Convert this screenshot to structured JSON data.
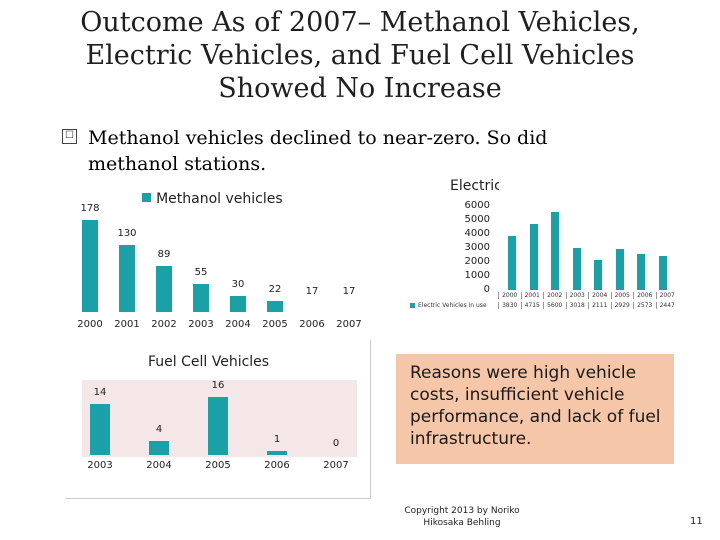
{
  "slide": {
    "title_lines": [
      "Outcome As of 2007– Methanol Vehicles,",
      "Electric Vehicles, and Fuel Cell Vehicles",
      "Showed No Increase"
    ],
    "bullet_marker": "☐",
    "bullet_line1": "Methanol vehicles declined to near-zero. So did",
    "bullet_line2": "methanol stations.",
    "reasons": "Reasons were high vehicle costs, insufficient vehicle performance, and lack of fuel infrastructure.",
    "copyright_line1": "Copyright 2013 by Noriko",
    "copyright_line2": "Hikosaka Behling",
    "page_number": "11",
    "accent": "#1aa1a8"
  },
  "chart_data": [
    {
      "type": "bar",
      "title": "Methanol vehicles",
      "legend_label": "Methanol vehicles",
      "categories": [
        "2000",
        "2001",
        "2002",
        "2003",
        "2004",
        "2005",
        "2006",
        "2007"
      ],
      "values": [
        178,
        130,
        89,
        55,
        30,
        22,
        17,
        17
      ],
      "labels": [
        "178",
        "130",
        "89",
        "55",
        "30",
        "22",
        "17",
        "17"
      ]
    },
    {
      "type": "bar",
      "title": "Electric \\",
      "categories": [
        "2000",
        "2001",
        "2002",
        "2003",
        "2004",
        "2005",
        "2006",
        "2007"
      ],
      "values": [
        3830,
        4715,
        5600,
        3018,
        2111,
        2929,
        2573,
        2447
      ],
      "yticks": [
        "6000",
        "5000",
        "4000",
        "3000",
        "2000",
        "1000",
        "0"
      ],
      "ylim": [
        0,
        6000
      ],
      "table_row_label": "Electric Vehicles in use",
      "table_values": [
        "3830",
        "4715",
        "5600",
        "3018",
        "2111",
        "2929",
        "2573",
        "2447"
      ]
    },
    {
      "type": "bar",
      "title": "Fuel Cell Vehicles",
      "categories": [
        "2003",
        "2004",
        "2005",
        "2006",
        "2007"
      ],
      "values": [
        14,
        4,
        16,
        1,
        0
      ],
      "labels": [
        "14",
        "4",
        "16",
        "1",
        "0"
      ]
    }
  ]
}
